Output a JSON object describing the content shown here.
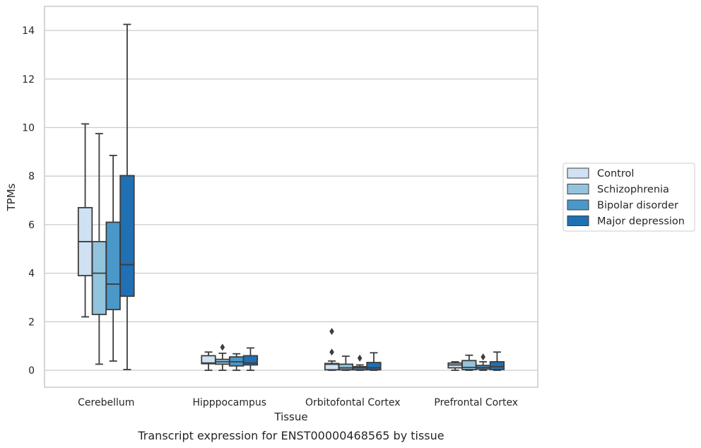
{
  "chart_data": {
    "type": "box",
    "caption": "Transcript expression for ENST00000468565 by tissue",
    "xlabel": "Tissue",
    "ylabel": "TPMs",
    "ylim": [
      -0.7,
      15.0
    ],
    "yticks": [
      0,
      2,
      4,
      6,
      8,
      10,
      12,
      14
    ],
    "grid": "horizontal",
    "legend_position": "right",
    "categories": [
      "Cerebellum",
      "Hipppocampus",
      "Orbitofontal Cortex",
      "Prefrontal Cortex"
    ],
    "series": [
      {
        "name": "Control",
        "color": "#cfe1f2",
        "boxes": [
          {
            "whisker_low": 2.2,
            "q1": 3.9,
            "median": 5.3,
            "q3": 6.7,
            "whisker_high": 10.15,
            "outliers": []
          },
          {
            "whisker_low": 0.0,
            "q1": 0.27,
            "median": 0.3,
            "q3": 0.6,
            "whisker_high": 0.75,
            "outliers": []
          },
          {
            "whisker_low": 0.0,
            "q1": 0.02,
            "median": 0.25,
            "q3": 0.28,
            "whisker_high": 0.38,
            "outliers": [
              0.75,
              1.6
            ]
          },
          {
            "whisker_low": 0.0,
            "q1": 0.1,
            "median": 0.22,
            "q3": 0.3,
            "whisker_high": 0.35,
            "outliers": []
          }
        ]
      },
      {
        "name": "Schizophrenia",
        "color": "#93c4de",
        "boxes": [
          {
            "whisker_low": 0.25,
            "q1": 2.3,
            "median": 4.0,
            "q3": 5.3,
            "whisker_high": 9.75,
            "outliers": []
          },
          {
            "whisker_low": 0.0,
            "q1": 0.25,
            "median": 0.35,
            "q3": 0.45,
            "whisker_high": 0.7,
            "outliers": [
              0.95
            ]
          },
          {
            "whisker_low": 0.0,
            "q1": 0.02,
            "median": 0.1,
            "q3": 0.25,
            "whisker_high": 0.58,
            "outliers": []
          },
          {
            "whisker_low": 0.0,
            "q1": 0.03,
            "median": 0.12,
            "q3": 0.4,
            "whisker_high": 0.62,
            "outliers": []
          }
        ]
      },
      {
        "name": "Bipolar disorder",
        "color": "#4a98c9",
        "boxes": [
          {
            "whisker_low": 0.38,
            "q1": 2.5,
            "median": 3.55,
            "q3": 6.1,
            "whisker_high": 8.85,
            "outliers": []
          },
          {
            "whisker_low": 0.0,
            "q1": 0.18,
            "median": 0.35,
            "q3": 0.55,
            "whisker_high": 0.68,
            "outliers": []
          },
          {
            "whisker_low": 0.0,
            "q1": 0.02,
            "median": 0.1,
            "q3": 0.15,
            "whisker_high": 0.22,
            "outliers": [
              0.5
            ]
          },
          {
            "whisker_low": 0.0,
            "q1": 0.05,
            "median": 0.12,
            "q3": 0.2,
            "whisker_high": 0.35,
            "outliers": [
              0.55
            ]
          }
        ]
      },
      {
        "name": "Major depression",
        "color": "#2070b4",
        "boxes": [
          {
            "whisker_low": 0.03,
            "q1": 3.05,
            "median": 4.35,
            "q3": 8.02,
            "whisker_high": 14.25,
            "outliers": []
          },
          {
            "whisker_low": 0.0,
            "q1": 0.22,
            "median": 0.3,
            "q3": 0.6,
            "whisker_high": 0.92,
            "outliers": []
          },
          {
            "whisker_low": 0.0,
            "q1": 0.02,
            "median": 0.1,
            "q3": 0.32,
            "whisker_high": 0.72,
            "outliers": []
          },
          {
            "whisker_low": 0.0,
            "q1": 0.03,
            "median": 0.15,
            "q3": 0.35,
            "whisker_high": 0.75,
            "outliers": []
          }
        ]
      }
    ]
  }
}
